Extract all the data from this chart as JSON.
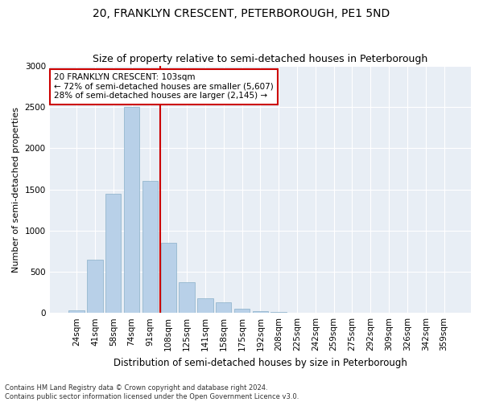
{
  "title": "20, FRANKLYN CRESCENT, PETERBOROUGH, PE1 5ND",
  "subtitle": "Size of property relative to semi-detached houses in Peterborough",
  "xlabel": "Distribution of semi-detached houses by size in Peterborough",
  "ylabel": "Number of semi-detached properties",
  "categories": [
    "24sqm",
    "41sqm",
    "58sqm",
    "74sqm",
    "91sqm",
    "108sqm",
    "125sqm",
    "141sqm",
    "158sqm",
    "175sqm",
    "192sqm",
    "208sqm",
    "225sqm",
    "242sqm",
    "259sqm",
    "275sqm",
    "292sqm",
    "309sqm",
    "326sqm",
    "342sqm",
    "359sqm"
  ],
  "values": [
    30,
    650,
    1450,
    2500,
    1600,
    850,
    370,
    175,
    125,
    55,
    20,
    10,
    5,
    2,
    1,
    0,
    0,
    0,
    0,
    0,
    0
  ],
  "bar_color": "#b8d0e8",
  "bar_edge_color": "#8aafc8",
  "vline_color": "#cc0000",
  "annotation_text_line1": "20 FRANKLYN CRESCENT: 103sqm",
  "annotation_text_line2": "← 72% of semi-detached houses are smaller (5,607)",
  "annotation_text_line3": "28% of semi-detached houses are larger (2,145) →",
  "annotation_box_color": "#ffffff",
  "annotation_box_edge_color": "#cc0000",
  "ylim": [
    0,
    3000
  ],
  "yticks": [
    0,
    500,
    1000,
    1500,
    2000,
    2500,
    3000
  ],
  "background_color": "#e8eef5",
  "footer_line1": "Contains HM Land Registry data © Crown copyright and database right 2024.",
  "footer_line2": "Contains public sector information licensed under the Open Government Licence v3.0.",
  "title_fontsize": 10,
  "subtitle_fontsize": 9,
  "xlabel_fontsize": 8.5,
  "ylabel_fontsize": 8,
  "tick_fontsize": 7.5,
  "annotation_fontsize": 7.5,
  "footer_fontsize": 6.0
}
